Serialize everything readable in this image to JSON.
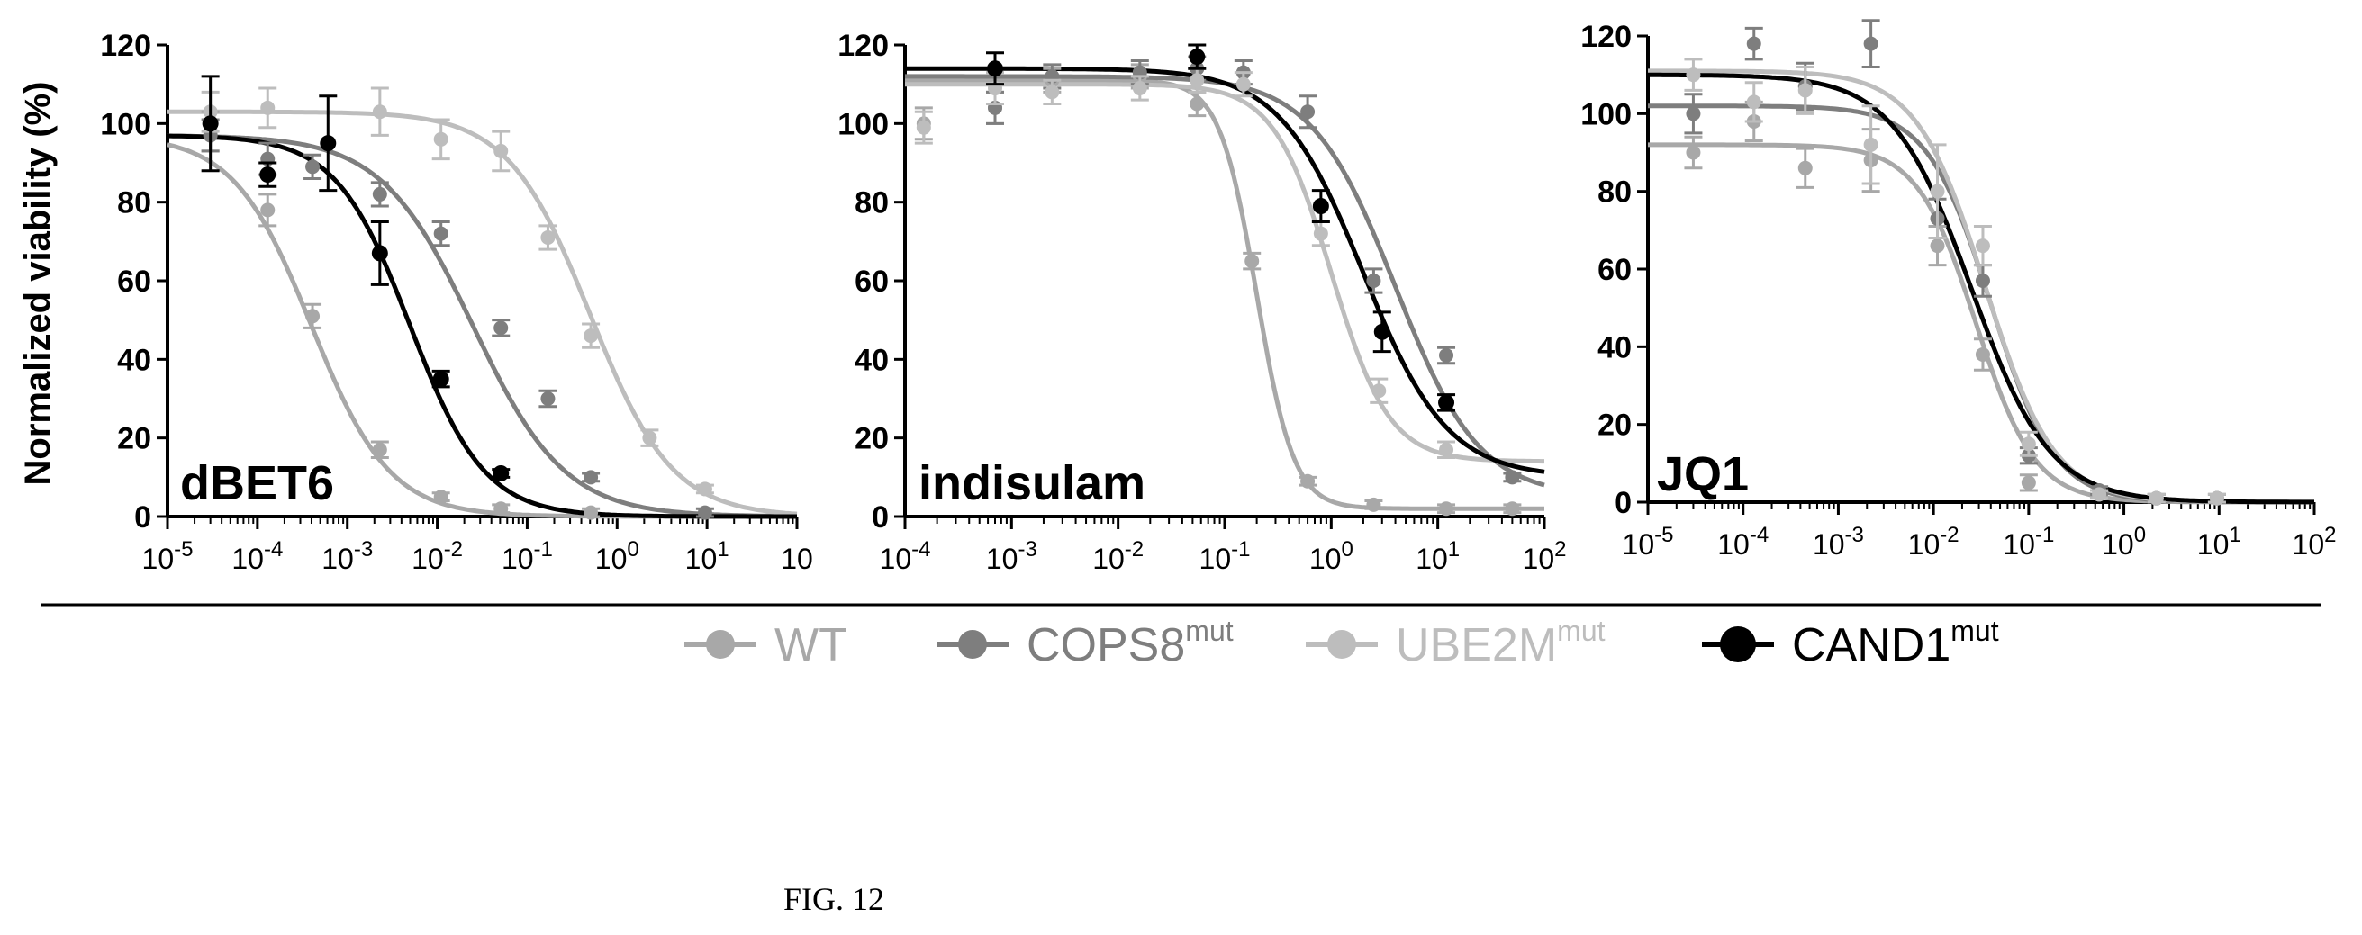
{
  "figure": {
    "y_axis_label": "Normalized viability (%)",
    "caption": "FIG. 12",
    "legend": [
      {
        "label": "WT",
        "sup": "",
        "color": "#a8a8a8",
        "marker": 16
      },
      {
        "label": "COPS8",
        "sup": "mut",
        "color": "#7e7e7e",
        "marker": 16
      },
      {
        "label": "UBE2M",
        "sup": "mut",
        "color": "#bdbdbd",
        "marker": 16
      },
      {
        "label": "CAND1",
        "sup": "mut",
        "color": "#000000",
        "marker": 20
      }
    ]
  },
  "chart_data": [
    {
      "type": "line",
      "title": "dBET6",
      "ylabel": "Normalized viability (%)",
      "xlabel": "",
      "xscale": "log",
      "xlim": [
        1e-05,
        100
      ],
      "ylim": [
        0,
        120
      ],
      "y_ticks": [
        0,
        20,
        40,
        60,
        80,
        100,
        120
      ],
      "x_ticks": [
        {
          "value": 1e-05,
          "base": "10",
          "exp": "-5"
        },
        {
          "value": 0.0001,
          "base": "10",
          "exp": "-4"
        },
        {
          "value": 0.001,
          "base": "10",
          "exp": "-3"
        },
        {
          "value": 0.01,
          "base": "10",
          "exp": "-2"
        },
        {
          "value": 0.1,
          "base": "10",
          "exp": "-1"
        },
        {
          "value": 1,
          "base": "10",
          "exp": "0"
        },
        {
          "value": 10,
          "base": "10",
          "exp": "1"
        },
        {
          "value": 100,
          "base": "10",
          "exp": ""
        }
      ],
      "series": [
        {
          "name": "WT",
          "color": "#a8a8a8",
          "top": 97,
          "bottom": 0,
          "ec50": 0.0004,
          "hill": 1.0,
          "x": [
            3e-05,
            0.00013,
            0.00041,
            0.0023,
            0.011,
            0.051,
            0.51
          ],
          "y": [
            98,
            78,
            51,
            17,
            5,
            2,
            1
          ],
          "err": [
            5,
            4,
            3,
            2,
            1,
            1,
            1
          ]
        },
        {
          "name": "COPS8mut",
          "color": "#7e7e7e",
          "top": 97,
          "bottom": 0,
          "ec50": 0.025,
          "hill": 0.85,
          "x": [
            3e-05,
            0.00013,
            0.00041,
            0.0023,
            0.011,
            0.051,
            0.17,
            0.51,
            9.5
          ],
          "y": [
            97,
            91,
            89,
            82,
            72,
            48,
            30,
            10,
            1
          ],
          "err": [
            4,
            4,
            3,
            3,
            3,
            2,
            2,
            1,
            1
          ]
        },
        {
          "name": "UBE2Mmut",
          "color": "#bdbdbd",
          "top": 103,
          "bottom": 0,
          "ec50": 0.5,
          "hill": 0.95,
          "x": [
            3e-05,
            0.00013,
            0.0023,
            0.011,
            0.051,
            0.17,
            0.51,
            2.3,
            9.5
          ],
          "y": [
            103,
            104,
            103,
            96,
            93,
            71,
            46,
            20,
            7
          ],
          "err": [
            5,
            5,
            6,
            5,
            5,
            3,
            3,
            2,
            1
          ]
        },
        {
          "name": "CAND1mut",
          "color": "#000000",
          "top": 97,
          "bottom": 0,
          "ec50": 0.005,
          "hill": 1.05,
          "x": [
            3e-05,
            0.00013,
            0.00061,
            0.0023,
            0.011,
            0.051
          ],
          "y": [
            100,
            87,
            95,
            67,
            35,
            11
          ],
          "err": [
            12,
            3,
            12,
            8,
            2,
            1
          ]
        }
      ]
    },
    {
      "type": "line",
      "title": "indisulam",
      "ylabel": "",
      "xlabel": "",
      "xscale": "log",
      "xlim": [
        0.0001,
        100
      ],
      "ylim": [
        0,
        120
      ],
      "y_ticks": [
        0,
        20,
        40,
        60,
        80,
        100,
        120
      ],
      "x_ticks": [
        {
          "value": 0.0001,
          "base": "10",
          "exp": "-4"
        },
        {
          "value": 0.001,
          "base": "10",
          "exp": "-3"
        },
        {
          "value": 0.01,
          "base": "10",
          "exp": "-2"
        },
        {
          "value": 0.1,
          "base": "10",
          "exp": "-1"
        },
        {
          "value": 1,
          "base": "10",
          "exp": "0"
        },
        {
          "value": 10,
          "base": "10",
          "exp": "1"
        },
        {
          "value": 100,
          "base": "10",
          "exp": "2"
        }
      ],
      "series": [
        {
          "name": "WT",
          "color": "#a8a8a8",
          "top": 111,
          "bottom": 2,
          "ec50": 0.2,
          "hill": 2.5,
          "x": [
            0.00015,
            0.0007,
            0.0024,
            0.016,
            0.055,
            0.18,
            0.6,
            2.5,
            12,
            50
          ],
          "y": [
            100,
            104,
            111,
            112,
            105,
            65,
            9,
            3,
            2,
            2
          ],
          "err": [
            4,
            4,
            3,
            3,
            3,
            2,
            1,
            1,
            1,
            1
          ]
        },
        {
          "name": "COPS8mut",
          "color": "#7e7e7e",
          "top": 112,
          "bottom": 5,
          "ec50": 4.0,
          "hill": 1.1,
          "x": [
            0.0007,
            0.0024,
            0.016,
            0.055,
            0.15,
            0.6,
            2.5,
            12,
            50
          ],
          "y": [
            104,
            112,
            113,
            114,
            113,
            103,
            60,
            41,
            10
          ],
          "err": [
            4,
            3,
            3,
            3,
            3,
            4,
            3,
            2,
            1
          ]
        },
        {
          "name": "UBE2Mmut",
          "color": "#bdbdbd",
          "top": 110,
          "bottom": 14,
          "ec50": 1.0,
          "hill": 1.6,
          "x": [
            0.00015,
            0.0007,
            0.0024,
            0.016,
            0.055,
            0.15,
            0.8,
            2.8,
            12
          ],
          "y": [
            99,
            109,
            108,
            109,
            111,
            110,
            72,
            32,
            17
          ],
          "err": [
            4,
            4,
            3,
            3,
            3,
            3,
            3,
            3,
            2
          ]
        },
        {
          "name": "CAND1mut",
          "color": "#000000",
          "top": 114,
          "bottom": 10,
          "ec50": 2.0,
          "hill": 1.1,
          "x": [
            0.0007,
            0.055,
            0.8,
            3.0,
            12
          ],
          "y": [
            114,
            117,
            79,
            47,
            29
          ],
          "err": [
            4,
            3,
            4,
            5,
            2
          ]
        }
      ]
    },
    {
      "type": "line",
      "title": "JQ1",
      "ylabel": "",
      "xlabel": "",
      "xscale": "log",
      "xlim": [
        1e-05,
        100
      ],
      "ylim": [
        0,
        120
      ],
      "y_ticks": [
        0,
        20,
        40,
        60,
        80,
        100,
        120
      ],
      "x_ticks": [
        {
          "value": 1e-05,
          "base": "10",
          "exp": "-5"
        },
        {
          "value": 0.0001,
          "base": "10",
          "exp": "-4"
        },
        {
          "value": 0.001,
          "base": "10",
          "exp": "-3"
        },
        {
          "value": 0.01,
          "base": "10",
          "exp": "-2"
        },
        {
          "value": 0.1,
          "base": "10",
          "exp": "-1"
        },
        {
          "value": 1,
          "base": "10",
          "exp": "0"
        },
        {
          "value": 10,
          "base": "10",
          "exp": "1"
        },
        {
          "value": 100,
          "base": "10",
          "exp": "2"
        }
      ],
      "series": [
        {
          "name": "WT",
          "color": "#a8a8a8",
          "top": 92,
          "bottom": 0,
          "ec50": 0.028,
          "hill": 1.4,
          "x": [
            3e-05,
            0.00013,
            0.00045,
            0.0022,
            0.011,
            0.033,
            0.1,
            0.55,
            2.2,
            9.5
          ],
          "y": [
            90,
            98,
            86,
            88,
            66,
            38,
            5,
            2,
            1,
            1
          ],
          "err": [
            4,
            5,
            5,
            8,
            5,
            4,
            2,
            1,
            1,
            1
          ]
        },
        {
          "name": "COPS8mut",
          "color": "#7e7e7e",
          "top": 102,
          "bottom": 0,
          "ec50": 0.04,
          "hill": 1.3,
          "x": [
            3e-05,
            0.00013,
            0.00045,
            0.0022,
            0.011,
            0.033,
            0.1,
            0.55,
            2.2,
            9.5
          ],
          "y": [
            100,
            118,
            107,
            118,
            73,
            57,
            12,
            3,
            1,
            1
          ],
          "err": [
            5,
            4,
            6,
            6,
            5,
            4,
            2,
            1,
            1,
            1
          ]
        },
        {
          "name": "UBE2Mmut",
          "color": "#bdbdbd",
          "top": 111,
          "bottom": 0,
          "ec50": 0.035,
          "hill": 1.2,
          "x": [
            3e-05,
            0.00013,
            0.00045,
            0.0022,
            0.011,
            0.033,
            0.1,
            0.55,
            2.2,
            9.5
          ],
          "y": [
            110,
            103,
            106,
            92,
            80,
            66,
            15,
            2,
            1,
            1
          ],
          "err": [
            4,
            5,
            6,
            10,
            12,
            5,
            3,
            1,
            1,
            1
          ]
        },
        {
          "name": "CAND1mut",
          "color": "#000000",
          "top": 110,
          "bottom": 0,
          "ec50": 0.025,
          "hill": 1.05,
          "x": [],
          "y": [],
          "err": []
        }
      ]
    }
  ]
}
